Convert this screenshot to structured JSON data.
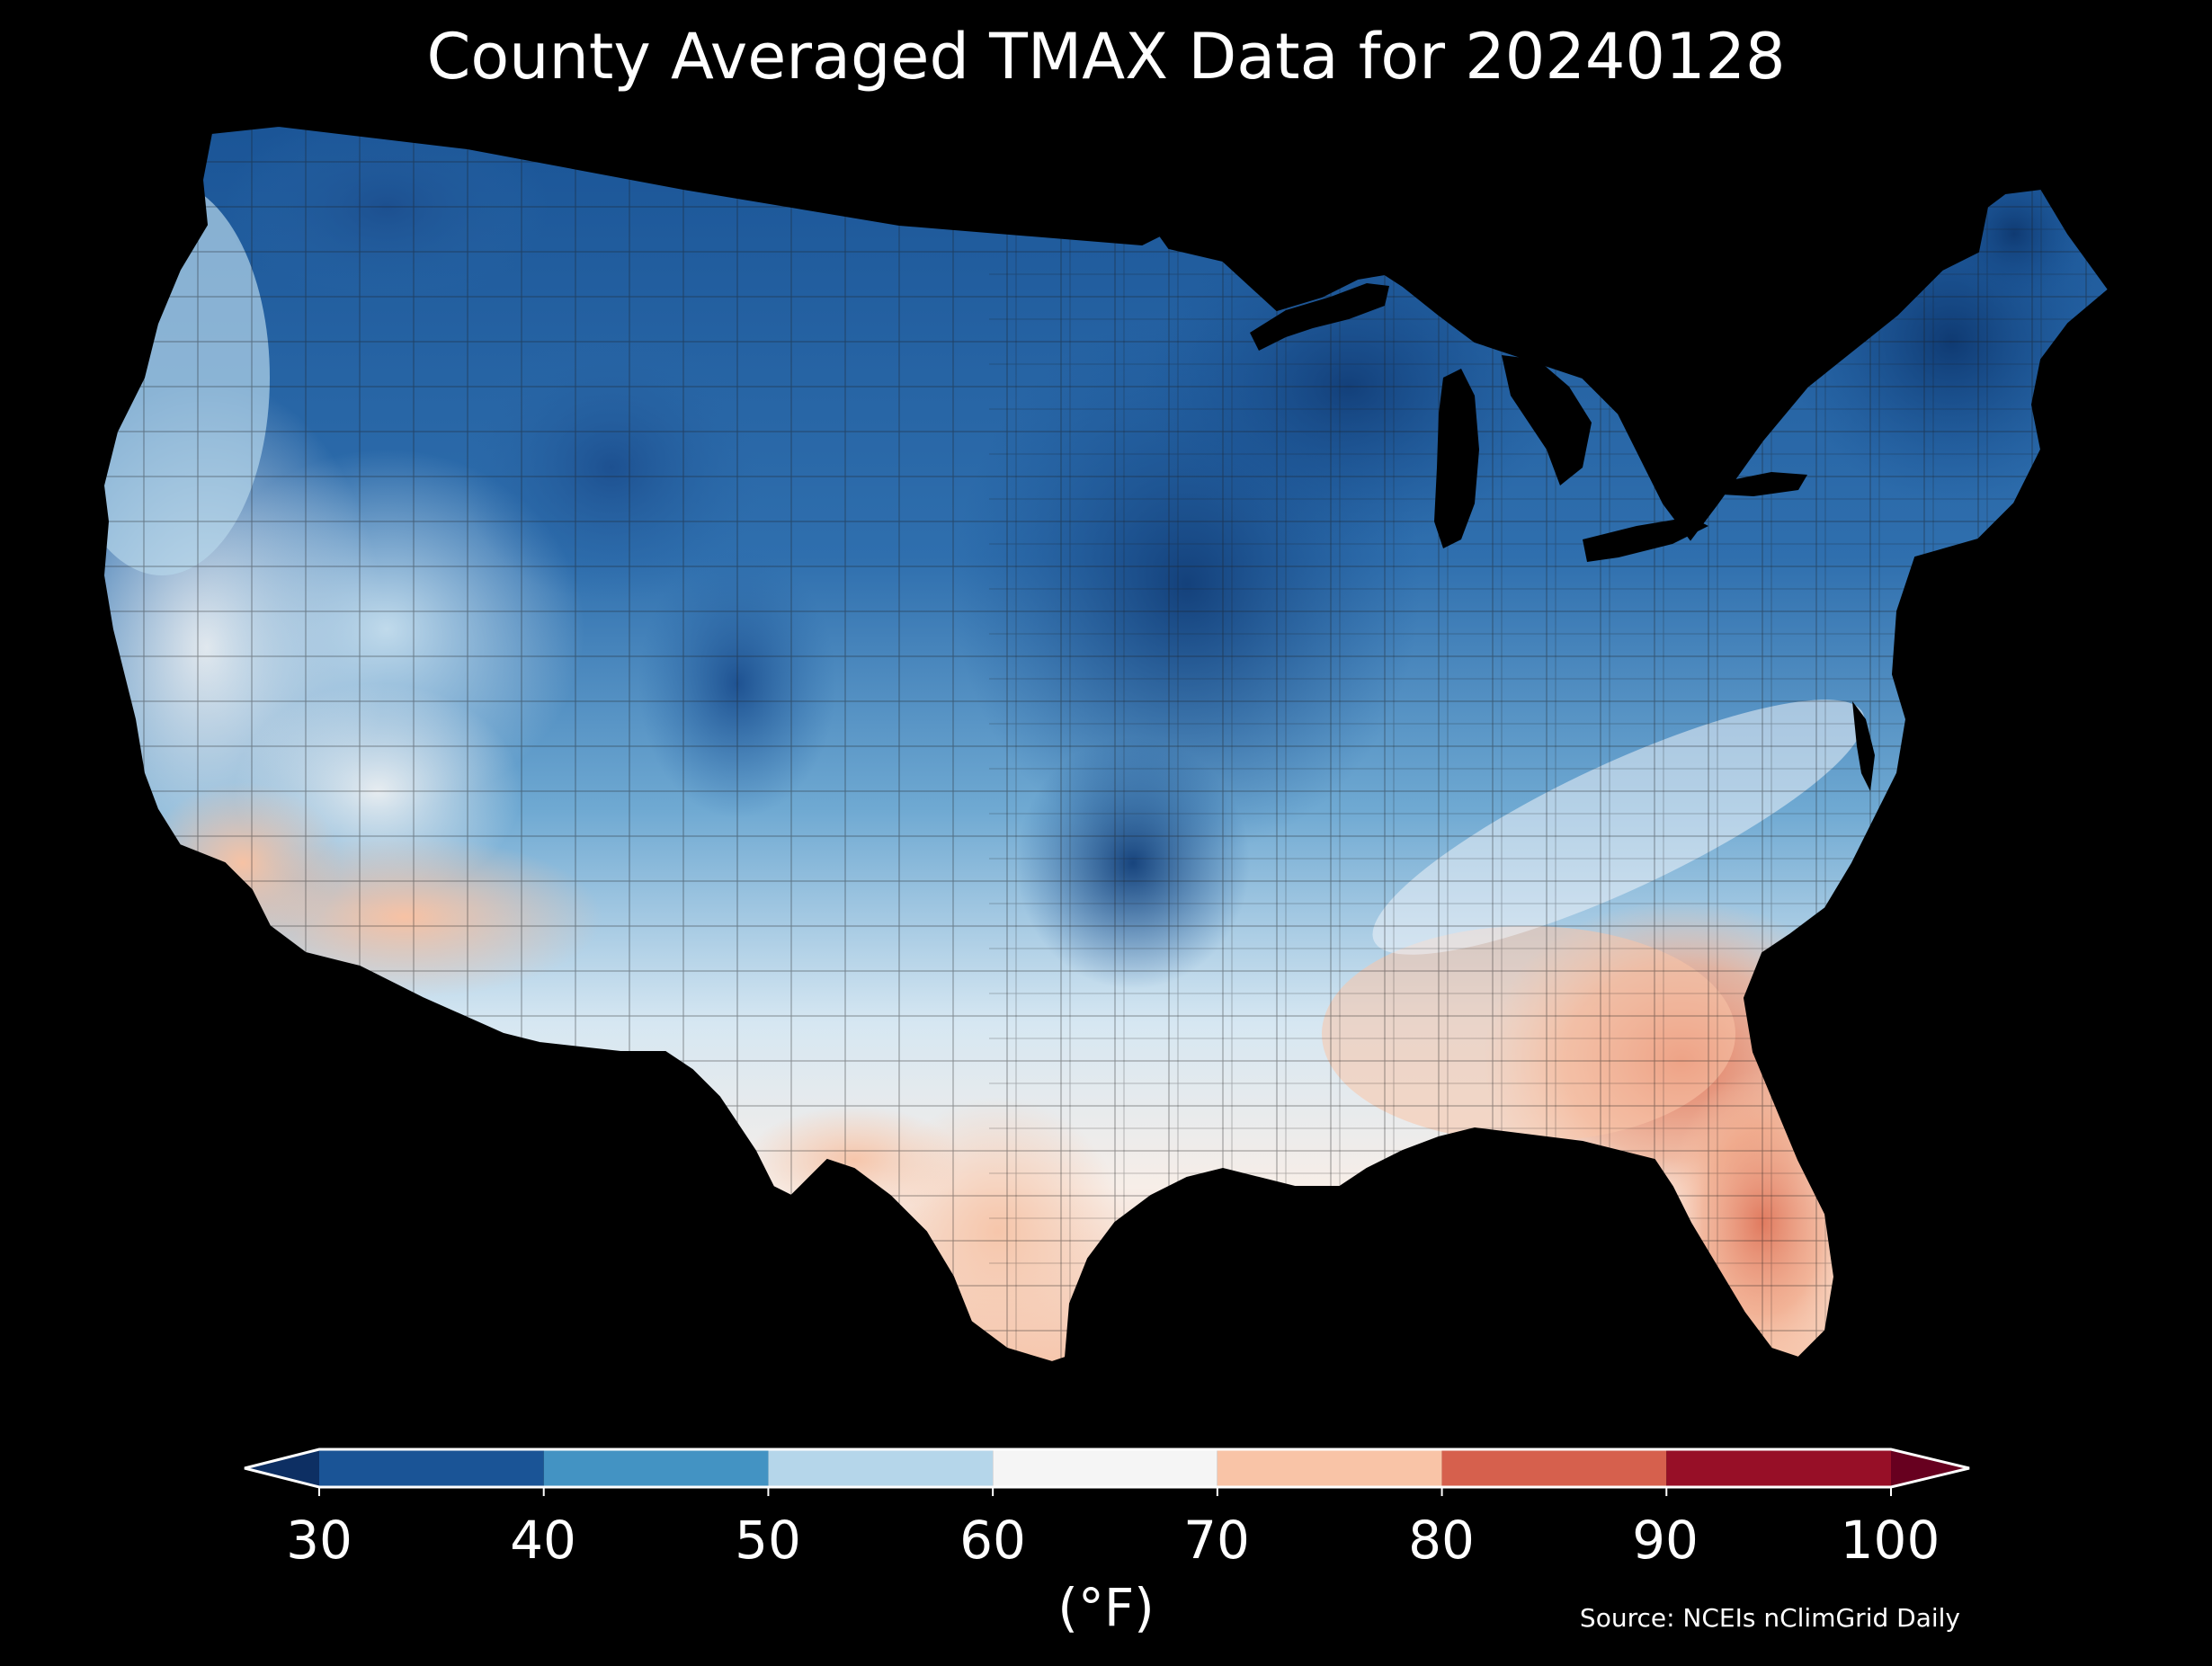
{
  "title": "County Averaged TMAX Data for 20240128",
  "colorbar": {
    "unit": "(°F)",
    "ticks": [
      "30",
      "40",
      "50",
      "60",
      "70",
      "80",
      "90",
      "100"
    ],
    "bins": [
      {
        "from": 30,
        "to": 40,
        "color": "#1a5496"
      },
      {
        "from": 40,
        "to": 50,
        "color": "#4393c3"
      },
      {
        "from": 50,
        "to": 60,
        "color": "#b5d6ea"
      },
      {
        "from": 60,
        "to": 70,
        "color": "#f5f5f5"
      },
      {
        "from": 70,
        "to": 80,
        "color": "#f9c4a7"
      },
      {
        "from": 80,
        "to": 90,
        "color": "#d6604d"
      },
      {
        "from": 90,
        "to": 100,
        "color": "#970f27"
      }
    ],
    "under_color": "#0d2f63",
    "over_color": "#67001f"
  },
  "source": "Source: NCEIs nClimGrid Daily",
  "map_colors": {
    "background": "#000000",
    "water": "#000000",
    "county_border": "#1c1c1c"
  }
}
